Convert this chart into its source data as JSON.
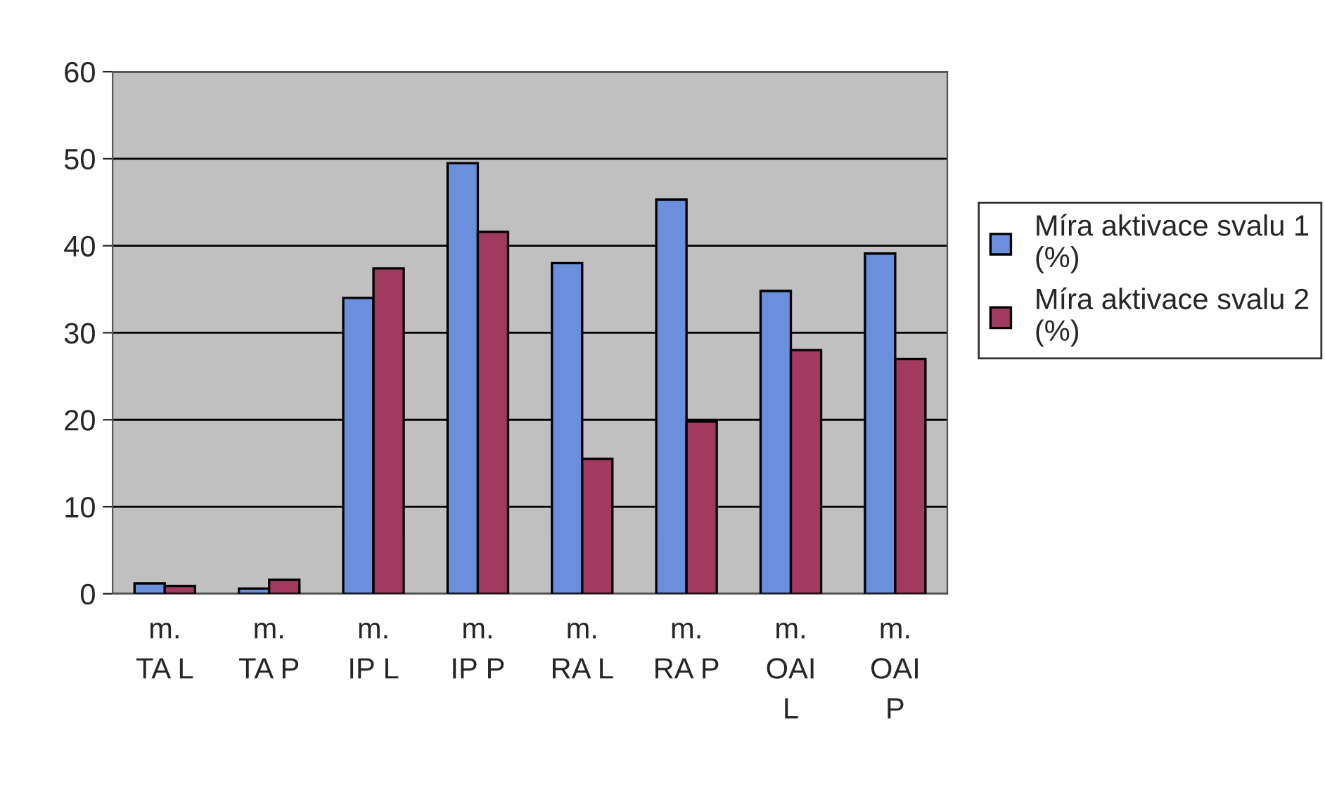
{
  "chart_data": {
    "type": "bar",
    "categories": [
      "m. TA L",
      "m. TA P",
      "m. IP L",
      "m. IP P",
      "m. RA L",
      "m. RA P",
      "m. OAI L",
      "m. OAI P"
    ],
    "series": [
      {
        "name": "Míra aktivace svalu 1 (%)",
        "color": "#6a8fdc",
        "values": [
          1.2,
          0.6,
          34,
          49.5,
          38,
          45.3,
          34.8,
          39.1
        ]
      },
      {
        "name": "Míra aktivace svalu 2 (%)",
        "color": "#a23a60",
        "values": [
          0.9,
          1.6,
          37.4,
          41.6,
          15.5,
          19.8,
          28,
          27
        ]
      }
    ],
    "ylim": [
      0,
      60
    ],
    "yticks": [
      0,
      10,
      20,
      30,
      40,
      50,
      60
    ],
    "grid": "y",
    "legend": "right"
  }
}
